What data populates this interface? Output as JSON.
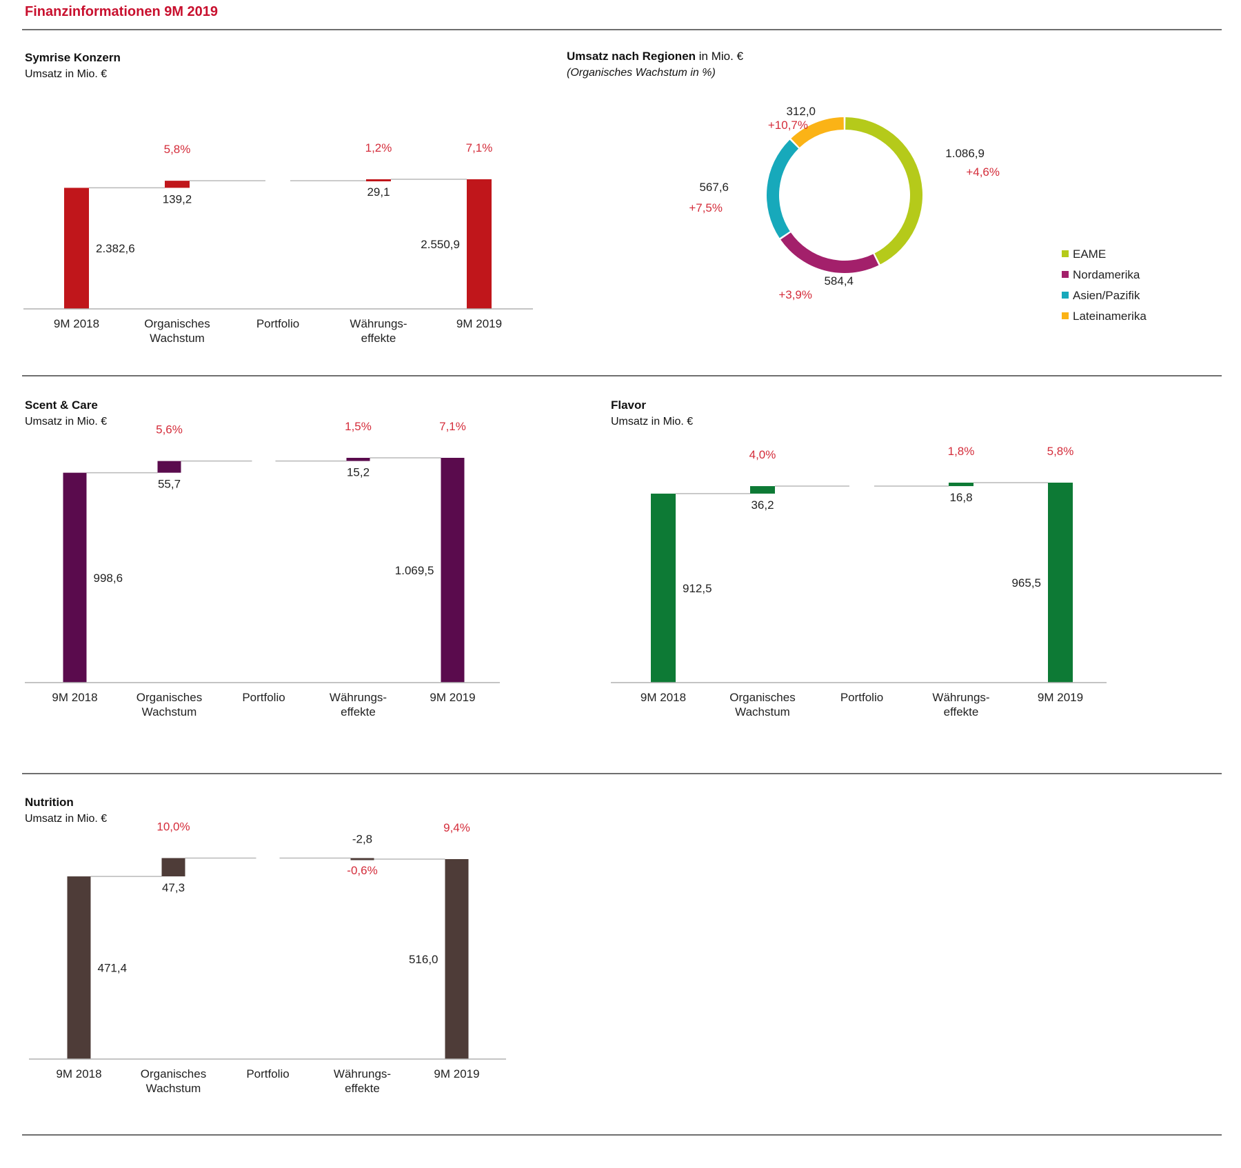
{
  "page": {
    "title": "Finanzinformationen 9M 2019"
  },
  "chart_data": [
    {
      "id": "symrise",
      "type": "bar",
      "subtype": "waterfall",
      "title": "Symrise Konzern",
      "subtitle": "Umsatz in Mio. €",
      "color": "#c0161b",
      "categories": [
        [
          "9M 2018"
        ],
        [
          "Organisches",
          "Wachstum"
        ],
        [
          "Portfolio"
        ],
        [
          "Währungs-",
          "effekte"
        ],
        [
          "9M 2019"
        ]
      ],
      "values": [
        2382.6,
        139.2,
        0,
        29.1,
        2550.9
      ],
      "value_labels": [
        "2.382,6",
        "139,2",
        "",
        "29,1",
        "2.550,9"
      ],
      "pct_labels": [
        "",
        "5,8%",
        "",
        "1,2%",
        "7,1%"
      ],
      "ylim": [
        0,
        2550.9
      ]
    },
    {
      "id": "regions",
      "type": "pie",
      "subtype": "donut",
      "title": "Umsatz nach Regionen",
      "title_suffix": " in Mio. €",
      "subtitle": "(Organisches Wachstum in %)",
      "slices": [
        {
          "name": "EAME",
          "value": 1086.9,
          "value_label": "1.086,9",
          "growth": "+4,6%",
          "color": "#b5ca1a"
        },
        {
          "name": "Nordamerika",
          "value": 584.4,
          "value_label": "584,4",
          "growth": "+3,9%",
          "color": "#a3206b"
        },
        {
          "name": "Asien/Pazifik",
          "value": 567.6,
          "value_label": "567,6",
          "growth": "+7,5%",
          "color": "#17a9bb"
        },
        {
          "name": "Lateinamerika",
          "value": 312.0,
          "value_label": "312,0",
          "growth": "+10,7%",
          "color": "#fbb316"
        }
      ],
      "legend": "right"
    },
    {
      "id": "scent",
      "type": "bar",
      "subtype": "waterfall",
      "title": "Scent & Care",
      "subtitle": "Umsatz in Mio. €",
      "color": "#5a0b4d",
      "categories": [
        [
          "9M 2018"
        ],
        [
          "Organisches",
          "Wachstum"
        ],
        [
          "Portfolio"
        ],
        [
          "Währungs-",
          "effekte"
        ],
        [
          "9M 2019"
        ]
      ],
      "values": [
        998.6,
        55.7,
        0,
        15.2,
        1069.5
      ],
      "value_labels": [
        "998,6",
        "55,7",
        "",
        "15,2",
        "1.069,5"
      ],
      "pct_labels": [
        "",
        "5,6%",
        "",
        "1,5%",
        "7,1%"
      ],
      "ylim": [
        0,
        1069.5
      ]
    },
    {
      "id": "flavor",
      "type": "bar",
      "subtype": "waterfall",
      "title": "Flavor",
      "subtitle": "Umsatz in Mio. €",
      "color": "#0d7a35",
      "categories": [
        [
          "9M 2018"
        ],
        [
          "Organisches",
          "Wachstum"
        ],
        [
          "Portfolio"
        ],
        [
          "Währungs-",
          "effekte"
        ],
        [
          "9M 2019"
        ]
      ],
      "values": [
        912.5,
        36.2,
        0,
        16.8,
        965.5
      ],
      "value_labels": [
        "912,5",
        "36,2",
        "",
        "16,8",
        "965,5"
      ],
      "pct_labels": [
        "",
        "4,0%",
        "",
        "1,8%",
        "5,8%"
      ],
      "ylim": [
        0,
        965.5
      ]
    },
    {
      "id": "nutrition",
      "type": "bar",
      "subtype": "waterfall",
      "title": "Nutrition",
      "subtitle": "Umsatz in Mio. €",
      "color": "#4e3c38",
      "categories": [
        [
          "9M 2018"
        ],
        [
          "Organisches",
          "Wachstum"
        ],
        [
          "Portfolio"
        ],
        [
          "Währungs-",
          "effekte"
        ],
        [
          "9M 2019"
        ]
      ],
      "values": [
        471.4,
        47.3,
        0,
        -2.8,
        516.0
      ],
      "value_labels": [
        "471,4",
        "47,3",
        "",
        "-2,8",
        "516,0"
      ],
      "pct_labels": [
        "",
        "10,0%",
        "",
        "-0,6%",
        "9,4%"
      ],
      "ylim": [
        0,
        516.0
      ]
    }
  ]
}
